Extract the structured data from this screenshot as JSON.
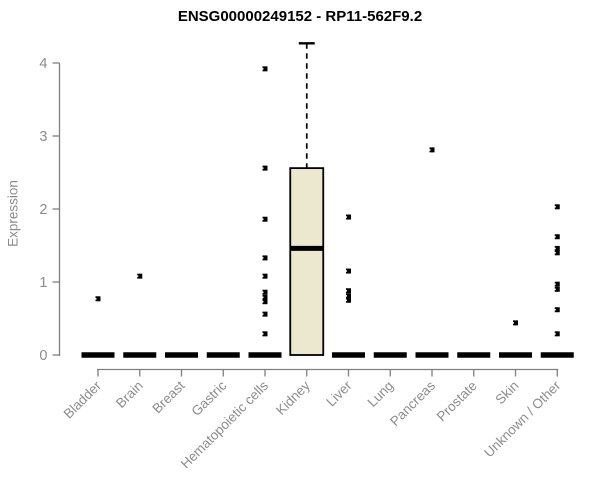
{
  "chart_data": {
    "type": "boxplot",
    "title": "ENSG00000249152 - RP11-562F9.2",
    "xlabel": "",
    "ylabel": "Expression",
    "ylim": [
      0,
      4.3
    ],
    "yticks": [
      0,
      1,
      2,
      3,
      4
    ],
    "grid": false,
    "legend": false,
    "categories": [
      "Bladder",
      "Brain",
      "Breast",
      "Gastric",
      "Hematopoietic cells",
      "Kidney",
      "Liver",
      "Lung",
      "Pancreas",
      "Prostate",
      "Skin",
      "Unknown / Other"
    ],
    "boxes": [
      {
        "category": "Bladder",
        "q1": 0,
        "median": 0,
        "q3": 0,
        "whisker_low": 0,
        "whisker_high": 0,
        "outliers": [
          0.77
        ]
      },
      {
        "category": "Brain",
        "q1": 0,
        "median": 0,
        "q3": 0,
        "whisker_low": 0,
        "whisker_high": 0,
        "outliers": [
          1.08
        ]
      },
      {
        "category": "Breast",
        "q1": 0,
        "median": 0,
        "q3": 0,
        "whisker_low": 0,
        "whisker_high": 0,
        "outliers": []
      },
      {
        "category": "Gastric",
        "q1": 0,
        "median": 0,
        "q3": 0,
        "whisker_low": 0,
        "whisker_high": 0,
        "outliers": []
      },
      {
        "category": "Hematopoietic cells",
        "q1": 0,
        "median": 0,
        "q3": 0,
        "whisker_low": 0,
        "whisker_high": 0,
        "outliers": [
          3.92,
          2.56,
          1.86,
          1.33,
          1.08,
          0.86,
          0.79,
          0.73,
          0.56,
          0.29
        ]
      },
      {
        "category": "Kidney",
        "q1": 0,
        "median": 1.46,
        "q3": 2.56,
        "whisker_low": 0,
        "whisker_high": 4.27,
        "outliers": []
      },
      {
        "category": "Liver",
        "q1": 0,
        "median": 0,
        "q3": 0,
        "whisker_low": 0,
        "whisker_high": 0,
        "outliers": [
          1.89,
          1.15,
          0.88,
          0.81,
          0.75
        ]
      },
      {
        "category": "Lung",
        "q1": 0,
        "median": 0,
        "q3": 0,
        "whisker_low": 0,
        "whisker_high": 0,
        "outliers": []
      },
      {
        "category": "Pancreas",
        "q1": 0,
        "median": 0,
        "q3": 0,
        "whisker_low": 0,
        "whisker_high": 0,
        "outliers": [
          2.81
        ]
      },
      {
        "category": "Prostate",
        "q1": 0,
        "median": 0,
        "q3": 0,
        "whisker_low": 0,
        "whisker_high": 0,
        "outliers": []
      },
      {
        "category": "Skin",
        "q1": 0,
        "median": 0,
        "q3": 0,
        "whisker_low": 0,
        "whisker_high": 0,
        "outliers": [
          0.44
        ]
      },
      {
        "category": "Unknown / Other",
        "q1": 0,
        "median": 0,
        "q3": 0,
        "whisker_low": 0,
        "whisker_high": 0,
        "outliers": [
          2.03,
          1.62,
          1.46,
          1.4,
          0.97,
          0.9,
          0.62,
          0.29
        ]
      }
    ],
    "style": {
      "box_fill": "#ECE7CF",
      "box_stroke": "#000000",
      "median_color": "#000000",
      "outlier_color": "#000000",
      "axis_color": "#7F7F7F",
      "label_color": "#8C8C8C",
      "title_color": "#000000",
      "background": "#FFFFFF"
    }
  }
}
